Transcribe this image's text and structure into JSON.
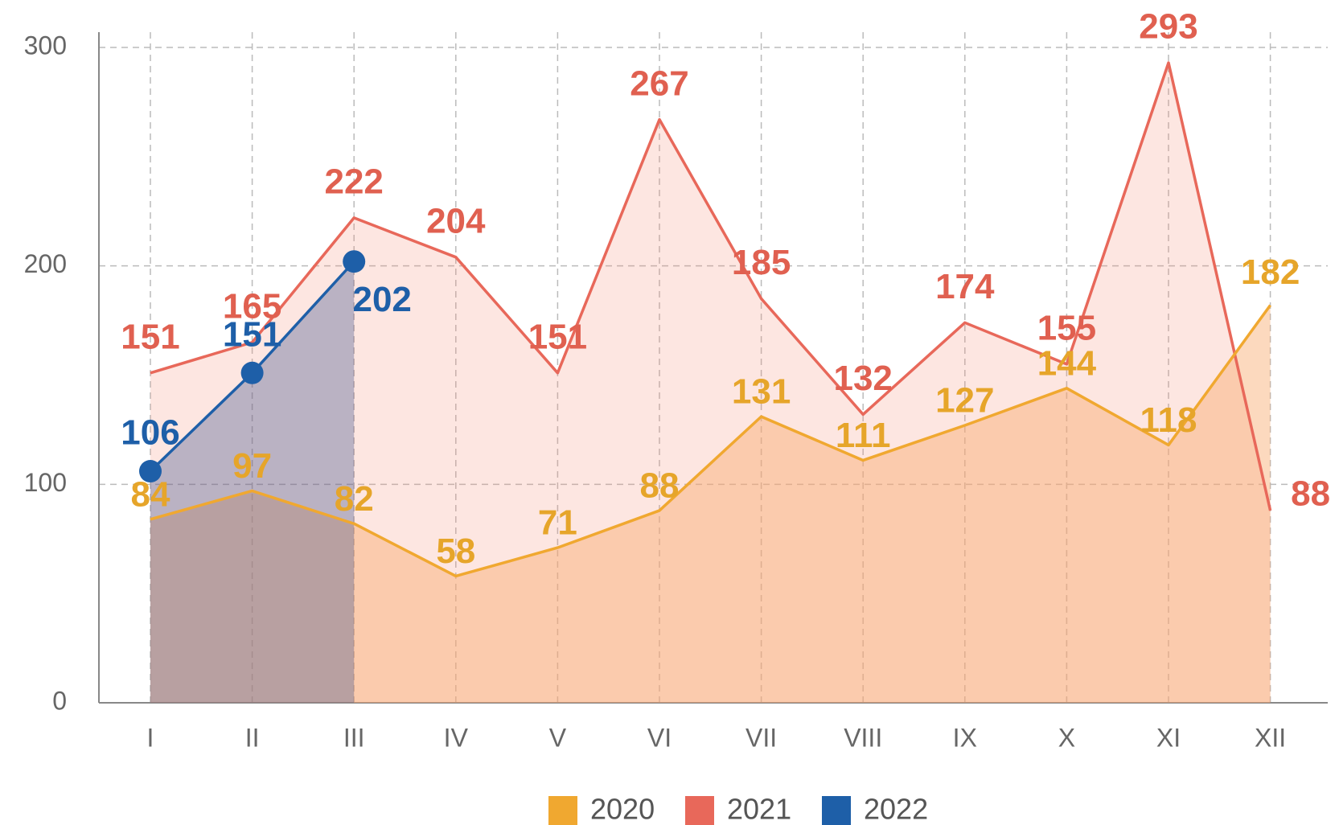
{
  "chart_data": {
    "type": "area",
    "categories": [
      "I",
      "II",
      "III",
      "IV",
      "V",
      "VI",
      "VII",
      "VIII",
      "IX",
      "X",
      "XI",
      "XII"
    ],
    "series": [
      {
        "name": "2020",
        "color": "#f0a830",
        "values": [
          84,
          97,
          82,
          58,
          71,
          88,
          131,
          111,
          127,
          144,
          118,
          182
        ]
      },
      {
        "name": "2021",
        "color": "#e8685a",
        "values": [
          151,
          165,
          222,
          204,
          151,
          267,
          185,
          132,
          174,
          155,
          293,
          88
        ]
      },
      {
        "name": "2022",
        "color": "#1e5fa8",
        "values": [
          106,
          151,
          202,
          null,
          null,
          null,
          null,
          null,
          null,
          null,
          null,
          null
        ]
      }
    ],
    "ylim": [
      0,
      307
    ],
    "yticks": [
      0,
      100,
      200,
      300
    ],
    "grid": true,
    "legend": "bottom"
  }
}
